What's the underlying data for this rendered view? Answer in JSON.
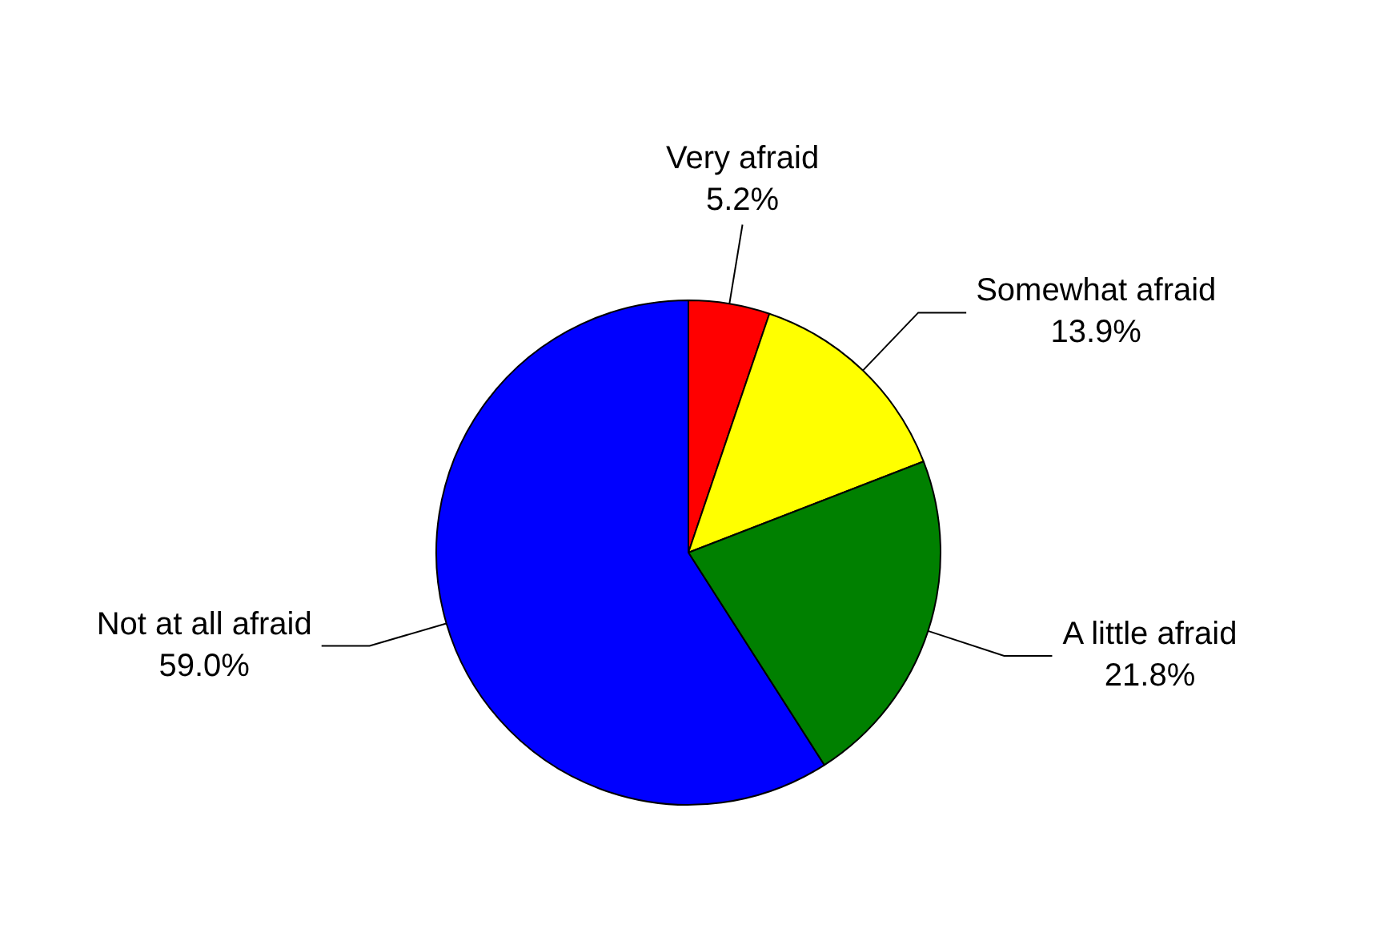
{
  "chart_data": {
    "type": "pie",
    "categories": [
      "Very afraid",
      "Somewhat afraid",
      "A little afraid",
      "Not at all afraid"
    ],
    "values": [
      5.2,
      13.9,
      21.8,
      59.0
    ],
    "value_labels": [
      "5.2%",
      "13.9%",
      "21.8%",
      "59.0%"
    ],
    "colors": [
      "#ff0000",
      "#ffff00",
      "#008000",
      "#0000ff"
    ],
    "legend": false
  }
}
